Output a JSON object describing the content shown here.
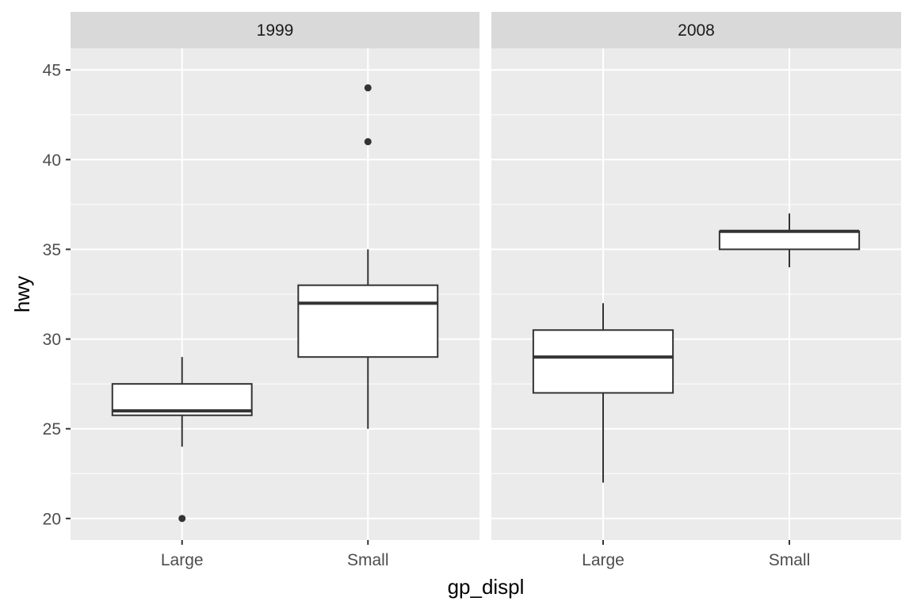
{
  "chart_data": {
    "type": "boxplot",
    "xlabel": "gp_displ",
    "ylabel": "hwy",
    "ylim": [
      18.8,
      46.2
    ],
    "yticks": [
      20,
      25,
      30,
      35,
      40,
      45
    ],
    "categories": [
      "Large",
      "Small"
    ],
    "grid": true,
    "colors": {
      "panel_bg": "#ebebeb",
      "strip_bg": "#d9d9d9",
      "grid_major": "#ffffff",
      "box_fill": "#ffffff",
      "box_line": "#333333",
      "tick_label": "#4d4d4d"
    },
    "facets": [
      {
        "label": "1999",
        "boxes": [
          {
            "category": "Large",
            "min": 24,
            "q1": 25.75,
            "median": 26,
            "q3": 27.5,
            "max": 29,
            "outliers": [
              20
            ]
          },
          {
            "category": "Small",
            "min": 25,
            "q1": 29,
            "median": 32,
            "q3": 33,
            "max": 35,
            "outliers": [
              41,
              44
            ]
          }
        ]
      },
      {
        "label": "2008",
        "boxes": [
          {
            "category": "Large",
            "min": 22,
            "q1": 27,
            "median": 29,
            "q3": 30.5,
            "max": 32,
            "outliers": []
          },
          {
            "category": "Small",
            "min": 34,
            "q1": 35,
            "median": 36,
            "q3": 36,
            "max": 37,
            "outliers": []
          }
        ]
      }
    ]
  }
}
